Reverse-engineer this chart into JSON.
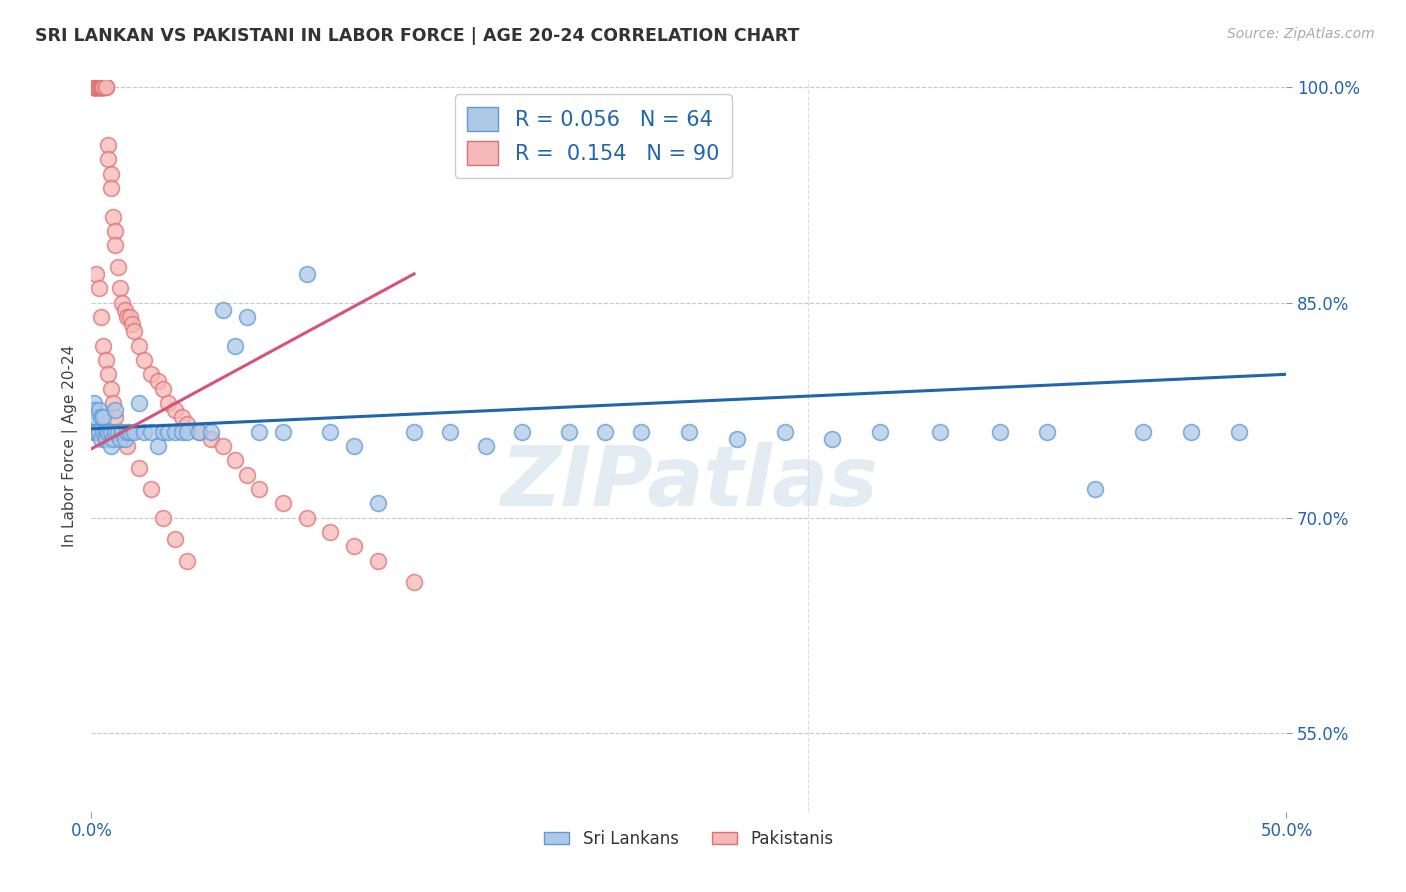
{
  "title": "SRI LANKAN VS PAKISTANI IN LABOR FORCE | AGE 20-24 CORRELATION CHART",
  "source": "Source: ZipAtlas.com",
  "ylabel": "In Labor Force | Age 20-24",
  "xlim": [
    0.0,
    0.5
  ],
  "ylim": [
    0.495,
    1.005
  ],
  "sri_lankans_color": "#aec8e8",
  "pakistanis_color": "#f5b8b8",
  "sri_lankans_edge": "#5b9bd5",
  "pakistanis_edge": "#e07070",
  "trend_blue": "#2166ac",
  "trend_pink": "#d6537a",
  "R_blue": 0.056,
  "N_blue": 64,
  "R_pink": 0.154,
  "N_pink": 90,
  "legend_label_blue": "Sri Lankans",
  "legend_label_pink": "Pakistanis",
  "watermark": "ZIPatlas",
  "background_color": "#ffffff",
  "grid_color": "#c8c8c8",
  "title_color": "#333333",
  "axis_label_color": "#444444",
  "tick_color": "#2166ac",
  "ytick_positions": [
    0.55,
    0.7,
    0.85,
    1.0
  ],
  "ytick_labels": [
    "55.0%",
    "70.0%",
    "85.0%",
    "100.0%"
  ],
  "xtick_positions": [
    0.0,
    0.5
  ],
  "xtick_labels": [
    "0.0%",
    "50.0%"
  ],
  "blue_x": [
    0.001,
    0.001,
    0.002,
    0.002,
    0.003,
    0.003,
    0.004,
    0.004,
    0.005,
    0.005,
    0.006,
    0.006,
    0.007,
    0.008,
    0.008,
    0.009,
    0.01,
    0.01,
    0.011,
    0.012,
    0.013,
    0.014,
    0.015,
    0.016,
    0.018,
    0.02,
    0.022,
    0.025,
    0.028,
    0.03,
    0.032,
    0.035,
    0.038,
    0.04,
    0.045,
    0.05,
    0.055,
    0.06,
    0.065,
    0.07,
    0.08,
    0.09,
    0.1,
    0.11,
    0.12,
    0.135,
    0.15,
    0.165,
    0.18,
    0.2,
    0.215,
    0.23,
    0.25,
    0.27,
    0.29,
    0.31,
    0.33,
    0.355,
    0.38,
    0.4,
    0.42,
    0.44,
    0.46,
    0.48
  ],
  "blue_y": [
    0.78,
    0.775,
    0.77,
    0.76,
    0.775,
    0.76,
    0.77,
    0.755,
    0.77,
    0.76,
    0.76,
    0.755,
    0.76,
    0.76,
    0.75,
    0.755,
    0.775,
    0.76,
    0.76,
    0.755,
    0.76,
    0.755,
    0.76,
    0.76,
    0.76,
    0.78,
    0.76,
    0.76,
    0.75,
    0.76,
    0.76,
    0.76,
    0.76,
    0.76,
    0.76,
    0.76,
    0.845,
    0.82,
    0.84,
    0.76,
    0.76,
    0.87,
    0.76,
    0.75,
    0.71,
    0.76,
    0.76,
    0.75,
    0.76,
    0.76,
    0.76,
    0.76,
    0.76,
    0.755,
    0.76,
    0.755,
    0.76,
    0.76,
    0.76,
    0.76,
    0.72,
    0.76,
    0.76,
    0.76
  ],
  "pink_x": [
    0.001,
    0.001,
    0.001,
    0.001,
    0.001,
    0.001,
    0.001,
    0.002,
    0.002,
    0.002,
    0.002,
    0.003,
    0.003,
    0.003,
    0.003,
    0.003,
    0.003,
    0.004,
    0.004,
    0.004,
    0.004,
    0.004,
    0.005,
    0.005,
    0.005,
    0.005,
    0.006,
    0.006,
    0.007,
    0.007,
    0.008,
    0.008,
    0.009,
    0.01,
    0.01,
    0.011,
    0.012,
    0.013,
    0.014,
    0.015,
    0.016,
    0.017,
    0.018,
    0.02,
    0.022,
    0.025,
    0.028,
    0.03,
    0.032,
    0.035,
    0.038,
    0.04,
    0.045,
    0.05,
    0.055,
    0.06,
    0.065,
    0.07,
    0.08,
    0.09,
    0.1,
    0.11,
    0.12,
    0.135,
    0.002,
    0.003,
    0.004,
    0.005,
    0.006,
    0.007,
    0.008,
    0.009,
    0.01,
    0.012,
    0.015,
    0.02,
    0.025,
    0.03,
    0.035,
    0.04,
    0.001,
    0.001,
    0.002,
    0.002,
    0.003,
    0.003,
    0.004,
    0.004,
    0.005,
    0.006
  ],
  "pink_y": [
    1.0,
    1.0,
    1.0,
    1.0,
    1.0,
    1.0,
    1.0,
    1.0,
    1.0,
    1.0,
    1.0,
    1.0,
    1.0,
    1.0,
    1.0,
    1.0,
    1.0,
    1.0,
    1.0,
    1.0,
    1.0,
    1.0,
    1.0,
    1.0,
    1.0,
    1.0,
    1.0,
    1.0,
    0.96,
    0.95,
    0.94,
    0.93,
    0.91,
    0.9,
    0.89,
    0.875,
    0.86,
    0.85,
    0.845,
    0.84,
    0.84,
    0.835,
    0.83,
    0.82,
    0.81,
    0.8,
    0.795,
    0.79,
    0.78,
    0.775,
    0.77,
    0.765,
    0.76,
    0.755,
    0.75,
    0.74,
    0.73,
    0.72,
    0.71,
    0.7,
    0.69,
    0.68,
    0.67,
    0.655,
    0.87,
    0.86,
    0.84,
    0.82,
    0.81,
    0.8,
    0.79,
    0.78,
    0.77,
    0.76,
    0.75,
    0.735,
    0.72,
    0.7,
    0.685,
    0.67,
    0.76,
    0.76,
    0.76,
    0.76,
    0.76,
    0.76,
    0.76,
    0.76,
    0.76,
    0.76
  ],
  "blue_trend_x0": 0.0,
  "blue_trend_x1": 0.5,
  "blue_trend_y0": 0.762,
  "blue_trend_y1": 0.8,
  "pink_trend_x0": 0.0,
  "pink_trend_x1": 0.135,
  "pink_trend_y0": 0.748,
  "pink_trend_y1": 0.87
}
